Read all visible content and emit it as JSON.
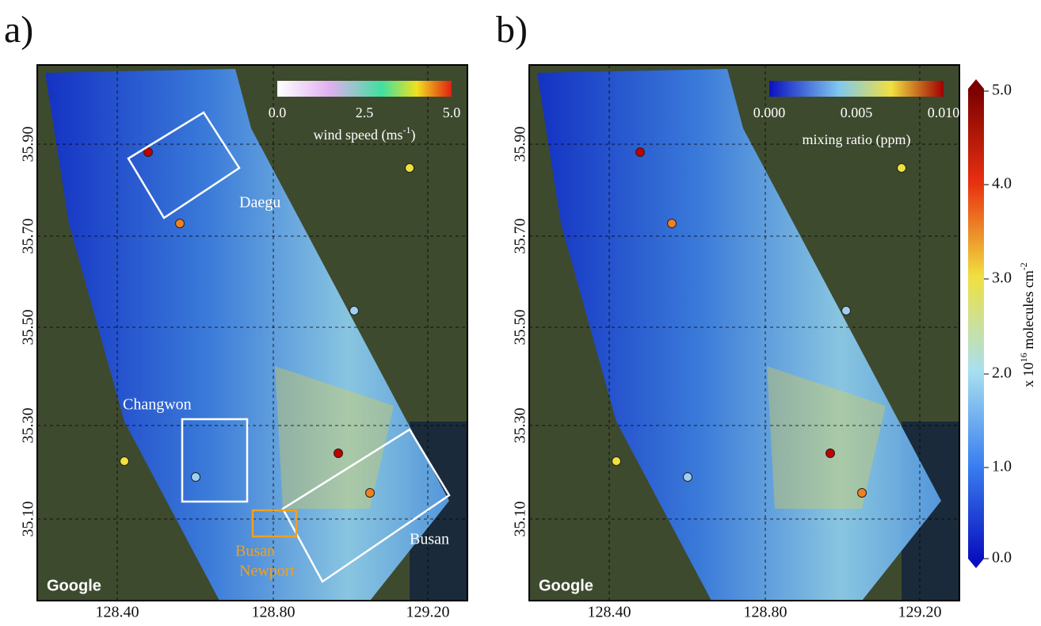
{
  "panels": [
    {
      "label": "a)",
      "colorbar": {
        "ticks": [
          "0.0",
          "2.5",
          "5.0"
        ],
        "title": "wind speed (ms",
        "title_sup": "-1",
        "title_end": ")"
      },
      "places": [
        "Daegu",
        "Changwon",
        "Busan",
        "Busan",
        "Newport"
      ],
      "credit": "Google"
    },
    {
      "label": "b)",
      "colorbar": {
        "ticks": [
          "0.000",
          "0.005",
          "0.010"
        ],
        "title": "mixing ratio (ppm)"
      },
      "credit": "Google"
    }
  ],
  "x_ticks": [
    "128.40",
    "128.80",
    "129.20"
  ],
  "y_ticks": [
    "35.10",
    "35.30",
    "35.50",
    "35.70",
    "35.90"
  ],
  "main_colorbar": {
    "ticks": [
      "0.0",
      "1.0",
      "2.0",
      "3.0",
      "4.0",
      "5.0"
    ],
    "label_prefix": "x 10",
    "label_sup": "16",
    "label_mid": " molecules cm",
    "label_sup2": "-2"
  }
}
